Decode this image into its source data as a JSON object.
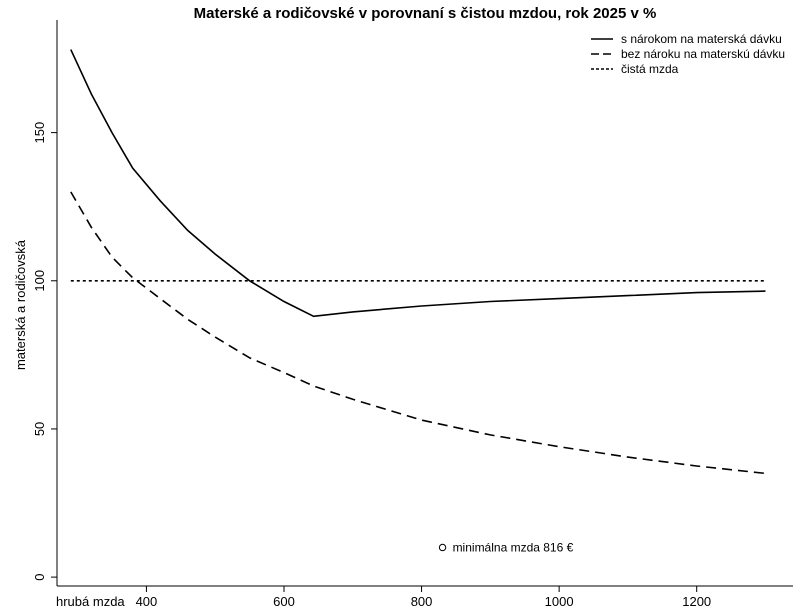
{
  "chart_data": {
    "type": "line",
    "title": "Materské a rodičovské v porovnaní s čistou mzdou, rok 2025 v %",
    "xlabel": "hrubá mzda",
    "ylabel": "materská a rodičovská",
    "xlim": [
      270,
      1340
    ],
    "ylim": [
      -3,
      188
    ],
    "xticks": [
      400,
      600,
      800,
      1000,
      1200
    ],
    "xtick_labels": [
      "400",
      "600",
      "800",
      "1000",
      "1200"
    ],
    "yticks": [
      0,
      50,
      100,
      150
    ],
    "ytick_labels": [
      "0",
      "50",
      "100",
      "150"
    ],
    "grid": false,
    "legend_position": "top-right",
    "series": [
      {
        "name": "s nárokom na materská dávku",
        "style": "solid",
        "x": [
          290,
          320,
          350,
          380,
          420,
          460,
          500,
          550,
          600,
          643,
          700,
          800,
          900,
          1000,
          1100,
          1200,
          1300
        ],
        "y": [
          178,
          163,
          150,
          138,
          127,
          117,
          109,
          100,
          93,
          88,
          89.5,
          91.5,
          93,
          94,
          95,
          96,
          96.5
        ]
      },
      {
        "name": "bez nároku na materskú dávku",
        "style": "dashed",
        "x": [
          290,
          320,
          350,
          380,
          420,
          460,
          500,
          550,
          600,
          643,
          700,
          800,
          900,
          1000,
          1100,
          1200,
          1300
        ],
        "y": [
          130,
          118,
          108,
          101,
          94,
          87,
          81,
          74,
          69,
          64.5,
          60,
          53,
          48,
          44,
          40.5,
          37.5,
          35
        ]
      },
      {
        "name": "čistá mzda",
        "style": "dotted",
        "x": [
          290,
          1300
        ],
        "y": [
          100,
          100
        ]
      }
    ],
    "annotations": [
      {
        "marker": "open-circle",
        "x": 816,
        "y": 10,
        "text": "minimálna mzda 816 €"
      }
    ]
  }
}
